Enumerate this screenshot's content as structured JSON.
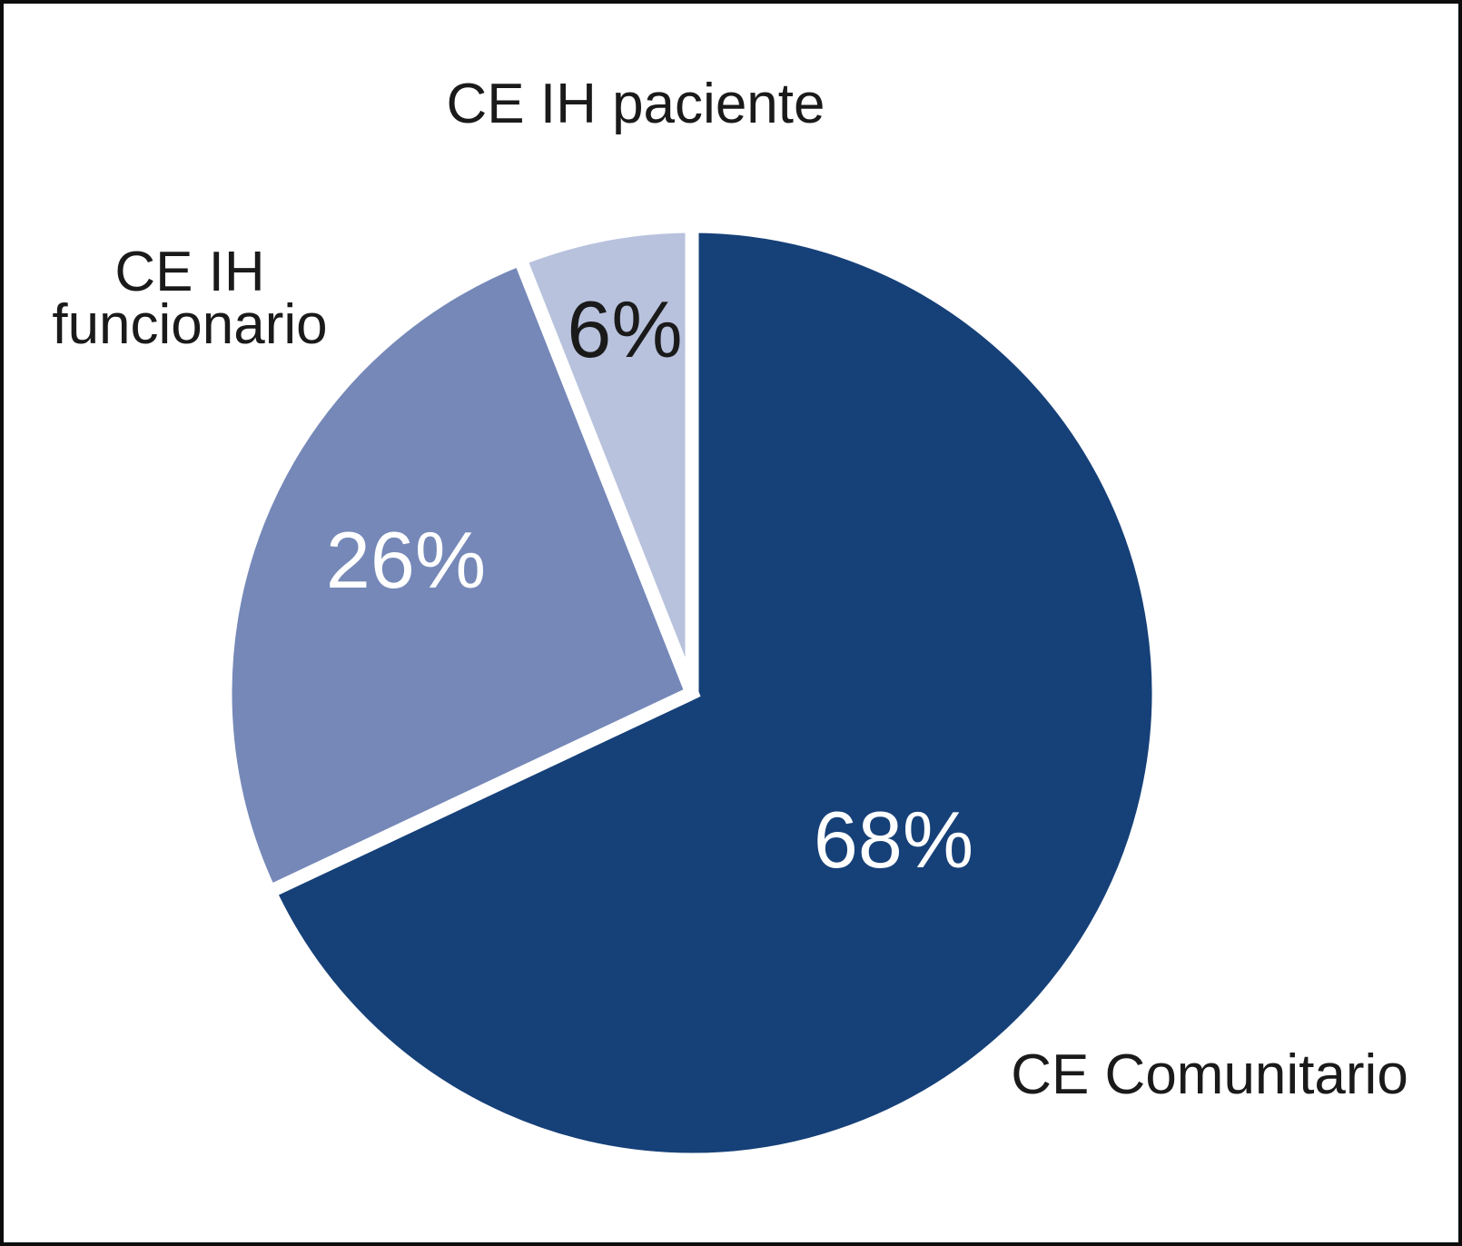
{
  "chart_data": {
    "type": "pie",
    "title": "",
    "categories": [
      "CE Comunitario",
      "CE IH funcionario",
      "CE IH paciente"
    ],
    "values": [
      68,
      26,
      6
    ],
    "unit": "%",
    "start_angle_deg": 0,
    "direction": "clockwise",
    "legend": "none",
    "labels_position": "outside",
    "separator_color": "#FFFFFF",
    "separator_width": 15,
    "background_color": "#FFFFFF",
    "frame_color": "#0D0D0D",
    "label_color": "#1A1A1A",
    "slices": [
      {
        "label": "CE Comunitario",
        "value": 68,
        "display": "68%",
        "color": "#164078",
        "text_color": "#FFFFFF"
      },
      {
        "label": "CE IH funcionario",
        "value": 26,
        "display": "26%",
        "color": "#7588B8",
        "text_color": "#FFFFFF"
      },
      {
        "label": "CE IH paciente",
        "value": 6,
        "display": "6%",
        "color": "#B8C2DD",
        "text_color": "#1A1A1A"
      }
    ]
  }
}
